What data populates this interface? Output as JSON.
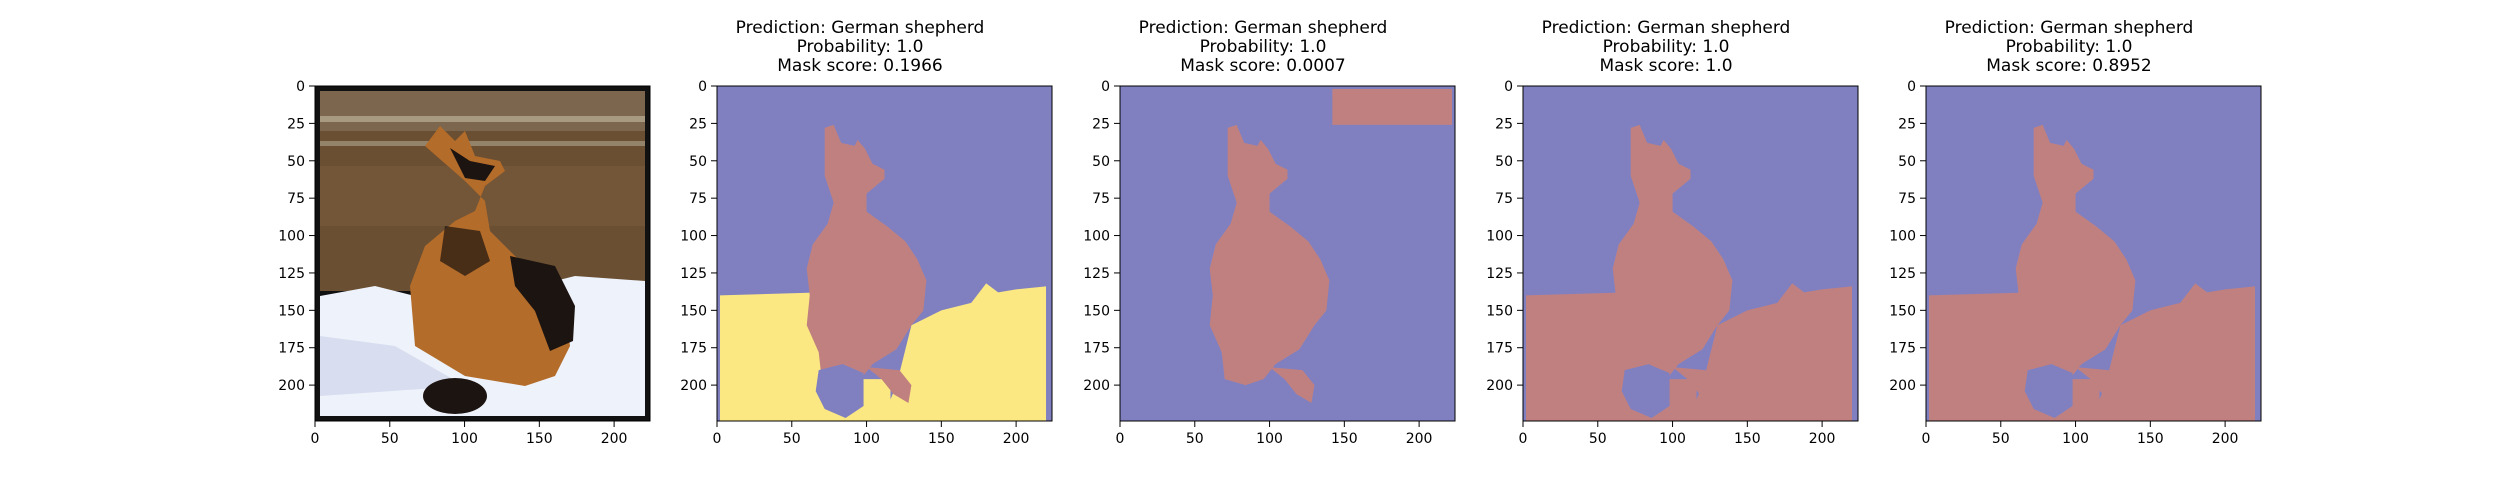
{
  "figure": {
    "axis": {
      "xticks": [
        0,
        50,
        100,
        150,
        200
      ],
      "yticks": [
        0,
        25,
        50,
        75,
        100,
        125,
        150,
        175,
        200
      ],
      "range": [
        0,
        224
      ]
    },
    "panels": [
      {
        "kind": "photo",
        "titles": []
      },
      {
        "kind": "mask",
        "variant": "yellow-bottom",
        "titles": [
          "Prediction: German shepherd",
          "Probability: 1.0",
          "Mask score: 0.1966"
        ]
      },
      {
        "kind": "mask",
        "variant": "top-right-box",
        "titles": [
          "Prediction: German shepherd",
          "Probability: 1.0",
          "Mask score: 0.0007"
        ]
      },
      {
        "kind": "mask",
        "variant": "red-bottom",
        "titles": [
          "Prediction: German shepherd",
          "Probability: 1.0",
          "Mask score: 1.0"
        ]
      },
      {
        "kind": "mask",
        "variant": "red-bottom",
        "titles": [
          "Prediction: German shepherd",
          "Probability: 1.0",
          "Mask score: 0.8952"
        ]
      }
    ],
    "colors": {
      "background_mask": "#8080c0",
      "dog_mask": "#c08080",
      "ground_yellow": "#fce882",
      "snow": "#eef2fb",
      "fur_tan": "#b36c2a",
      "fur_black": "#1c1410",
      "forest": "#6a4f33"
    }
  }
}
